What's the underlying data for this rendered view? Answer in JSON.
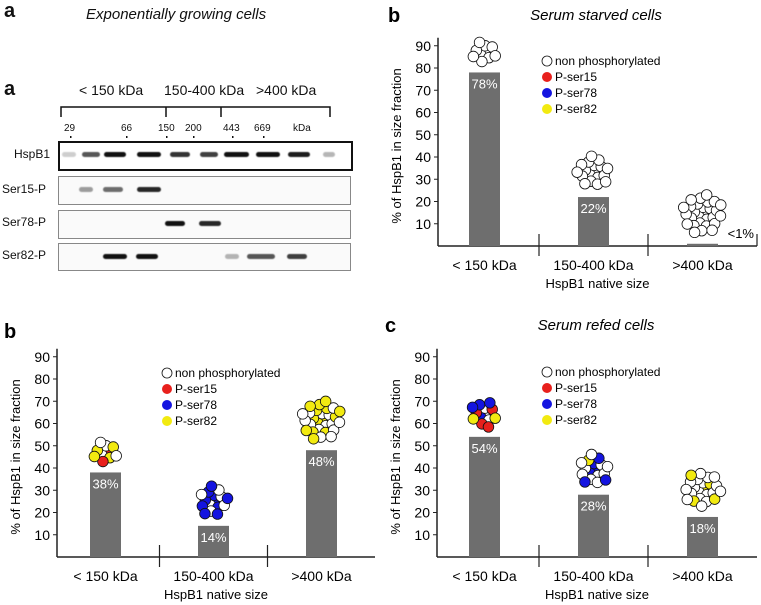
{
  "panel_a": {
    "letter_top": "a",
    "letter": "a",
    "title": "Exponentially growing cells",
    "size_groups": [
      "< 150 kDa",
      "150-400 kDa",
      ">400 kDa"
    ],
    "markers": [
      "29",
      "66",
      "150",
      "200",
      "443",
      "669",
      "kDa"
    ],
    "rows": [
      "HspB1",
      "Ser15-P",
      "Ser78-P",
      "Ser82-P"
    ]
  },
  "chart_data": [
    {
      "id": "exp",
      "type": "bar",
      "letter": "b",
      "title": "",
      "categories": [
        "< 150 kDa",
        "150-400 kDa",
        ">400 kDa"
      ],
      "values": [
        38,
        14,
        48
      ],
      "data_labels": [
        "38%",
        "14%",
        "48%"
      ],
      "xlabel": "HspB1 native size",
      "ylabel": "% of HspB1 in size fraction",
      "yticks": [
        10,
        20,
        30,
        40,
        50,
        60,
        70,
        80,
        90
      ],
      "ylim": [
        0,
        90
      ],
      "bar_color": "#6e6e6e",
      "legend": [
        "non phosphorylated",
        "P-ser15",
        "P-ser78",
        "P-ser82"
      ],
      "legend_colors": [
        "#ffffff",
        "#e8201c",
        "#1414e0",
        "#f2ea10"
      ],
      "clusters": [
        {
          "white": 4,
          "red": 2,
          "yellow": 4
        },
        {
          "white": 6,
          "blue": 10
        },
        {
          "white": 14,
          "yellow": 14
        }
      ]
    },
    {
      "id": "starved",
      "type": "bar",
      "letter": "b",
      "title": "Serum starved cells",
      "categories": [
        "< 150 kDa",
        "150-400 kDa",
        ">400 kDa"
      ],
      "values": [
        78,
        22,
        1
      ],
      "data_labels": [
        "78%",
        "22%",
        "<1%"
      ],
      "xlabel": "HspB1 native size",
      "ylabel": "% of HspB1 in size fraction",
      "yticks": [
        10,
        20,
        30,
        40,
        50,
        60,
        70,
        80,
        90
      ],
      "ylim": [
        0,
        90
      ],
      "bar_color": "#6e6e6e",
      "legend": [
        "non phosphorylated",
        "P-ser15",
        "P-ser78",
        "P-ser82"
      ],
      "legend_colors": [
        "#ffffff",
        "#e8201c",
        "#1414e0",
        "#f2ea10"
      ],
      "clusters": [
        {
          "white": 10
        },
        {
          "white": 18
        },
        {
          "white": 28
        }
      ]
    },
    {
      "id": "refed",
      "type": "bar",
      "letter": "c",
      "title": "Serum refed cells",
      "categories": [
        "< 150 kDa",
        "150-400 kDa",
        ">400 kDa"
      ],
      "values": [
        54,
        28,
        18
      ],
      "data_labels": [
        "54%",
        "28%",
        "18%"
      ],
      "xlabel": "HspB1 native size",
      "ylabel": "% of HspB1 in size fraction",
      "yticks": [
        10,
        20,
        30,
        40,
        50,
        60,
        70,
        80,
        90
      ],
      "ylim": [
        0,
        90
      ],
      "bar_color": "#6e6e6e",
      "legend": [
        "non phosphorylated",
        "P-ser15",
        "P-ser78",
        "P-ser82"
      ],
      "legend_colors": [
        "#ffffff",
        "#e8201c",
        "#1414e0",
        "#f2ea10"
      ],
      "clusters": [
        {
          "white": 3,
          "red": 4,
          "blue": 4,
          "yellow": 2
        },
        {
          "white": 10,
          "blue": 6,
          "yellow": 1
        },
        {
          "white": 18,
          "yellow": 5
        }
      ]
    }
  ]
}
